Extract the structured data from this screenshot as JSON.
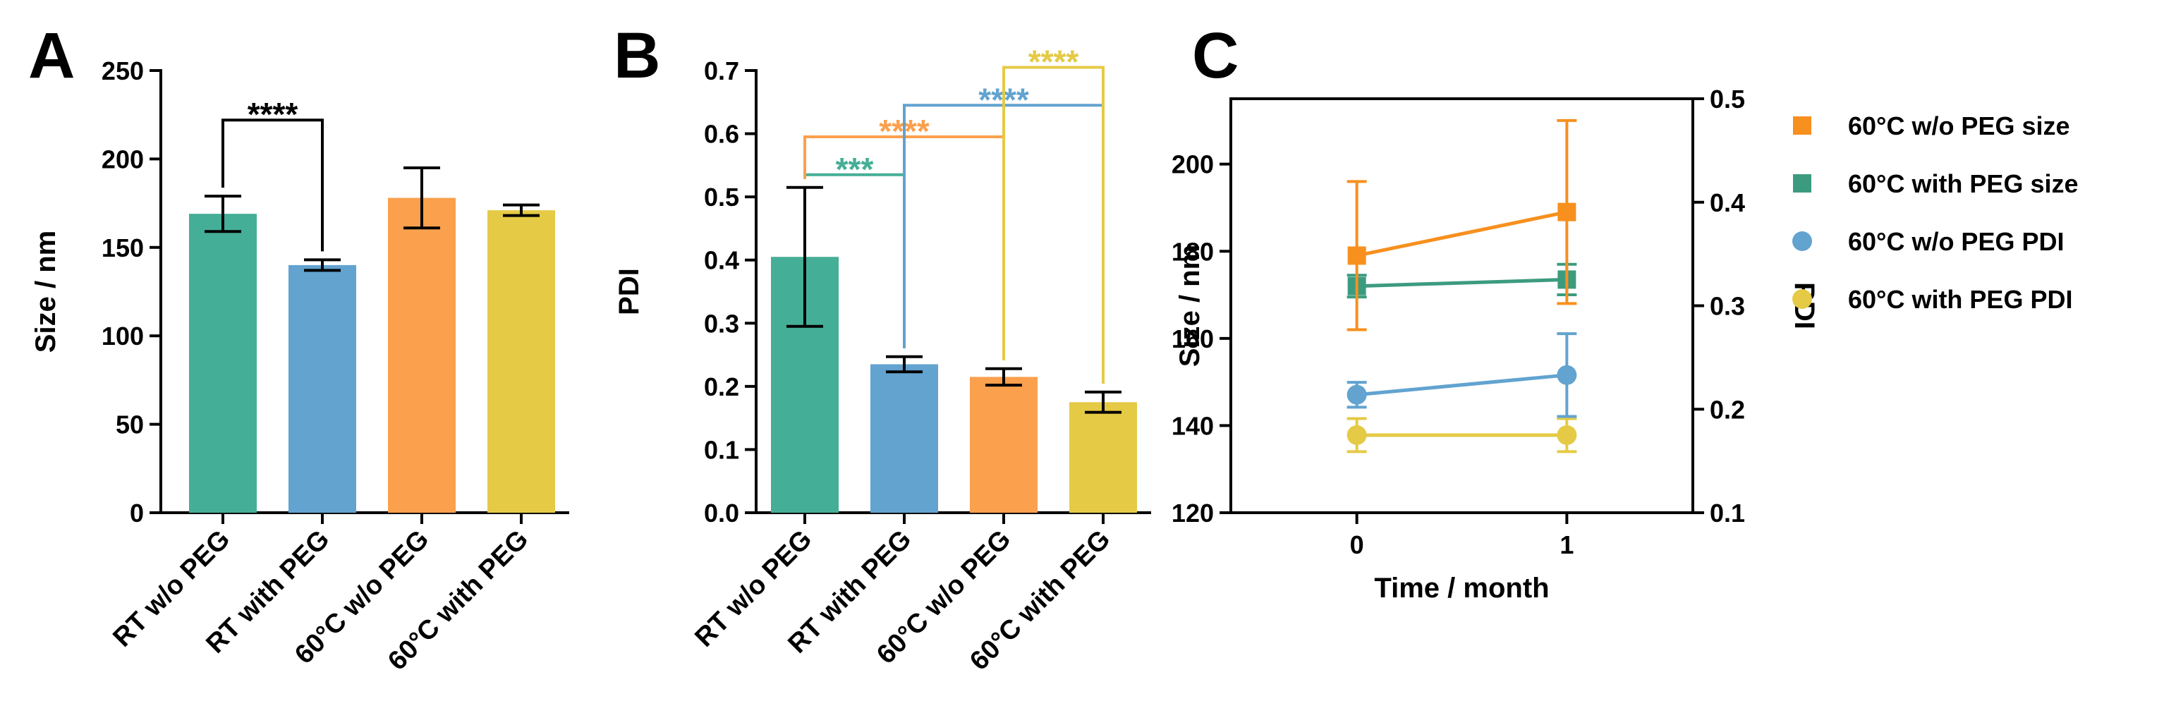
{
  "chart_data": [
    {
      "panel": "A",
      "type": "bar",
      "ylabel": "Size / nm",
      "ylim": [
        0,
        250
      ],
      "yticks": [
        "0",
        "50",
        "100",
        "150",
        "200",
        "250"
      ],
      "categories": [
        "RT w/o PEG",
        "RT with PEG",
        "60°C w/o PEG",
        "60°C with PEG"
      ],
      "values": [
        169,
        140,
        178,
        171
      ],
      "errors": [
        10,
        3,
        17,
        3
      ],
      "colors": [
        "#45AE96",
        "#62A3D0",
        "#FBA04D",
        "#E5CA45"
      ],
      "significance": [
        {
          "from": 0,
          "to": 1,
          "label": "****",
          "color": "#000000",
          "level": 222
        }
      ]
    },
    {
      "panel": "B",
      "type": "bar",
      "ylabel": "PDI",
      "ylim": [
        0,
        0.7
      ],
      "yticks": [
        "0.0",
        "0.1",
        "0.2",
        "0.3",
        "0.4",
        "0.5",
        "0.6",
        "0.7"
      ],
      "categories": [
        "RT w/o PEG",
        "RT with PEG",
        "60°C w/o PEG",
        "60°C with PEG"
      ],
      "values": [
        0.405,
        0.235,
        0.215,
        0.175
      ],
      "errors": [
        0.11,
        0.012,
        0.013,
        0.016
      ],
      "colors": [
        "#45AE96",
        "#62A3D0",
        "#FBA04D",
        "#E5CA45"
      ],
      "significance": [
        {
          "from": 0,
          "to": 1,
          "label": "***",
          "color": "#45AE96",
          "level": 0.535
        },
        {
          "from": 0,
          "to": 2,
          "label": "****",
          "color": "#FBA04D",
          "level": 0.595
        },
        {
          "from": 1,
          "to": 3,
          "label": "****",
          "color": "#62A3D0",
          "level": 0.645
        },
        {
          "from": 2,
          "to": 3,
          "label": "****",
          "color": "#E5CA45",
          "level": 0.705
        }
      ]
    },
    {
      "panel": "C",
      "type": "line",
      "xlabel": "Time / month",
      "ylabel": "Size / nm",
      "y2label": "PDI",
      "xlim": [
        -0.6,
        1.6
      ],
      "xticks": [
        "0",
        "1"
      ],
      "ylim": [
        120,
        215
      ],
      "yticks": [
        "120",
        "140",
        "160",
        "180",
        "200"
      ],
      "y2lim": [
        0.1,
        0.5
      ],
      "y2ticks": [
        "0.1",
        "0.2",
        "0.3",
        "0.4",
        "0.5"
      ],
      "legend_position": "right, outside plot",
      "series": [
        {
          "name": "60°C w/o PEG size",
          "axis": "left",
          "marker": "square",
          "color": "#F7901E",
          "x": [
            0,
            1
          ],
          "y": [
            179,
            189
          ],
          "err": [
            17,
            21
          ]
        },
        {
          "name": "60°C with PEG size",
          "axis": "left",
          "marker": "square",
          "color": "#3C9B7F",
          "x": [
            0,
            1
          ],
          "y": [
            172,
            173.5
          ],
          "err": [
            2.5,
            3.5
          ]
        },
        {
          "name": "60°C w/o PEG PDI",
          "axis": "right",
          "marker": "circle",
          "color": "#62A3D0",
          "x": [
            0,
            1
          ],
          "y": [
            0.214,
            0.233
          ],
          "err": [
            0.012,
            0.04
          ]
        },
        {
          "name": "60°C with PEG PDI",
          "axis": "right",
          "marker": "circle",
          "color": "#E5CA45",
          "x": [
            0,
            1
          ],
          "y": [
            0.175,
            0.175
          ],
          "err": [
            0.016,
            0.016
          ]
        }
      ]
    }
  ]
}
